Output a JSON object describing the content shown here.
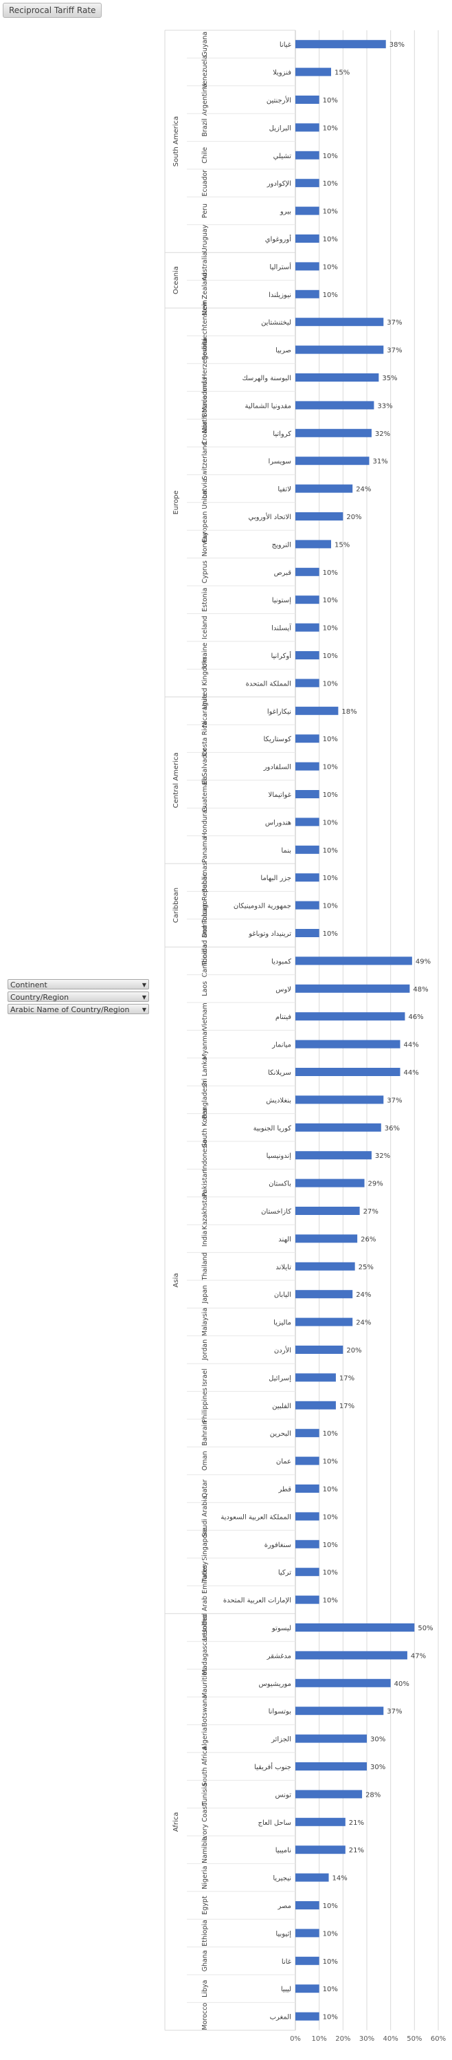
{
  "header": {
    "title": "Reciprocal Tariff Rate"
  },
  "fields": [
    {
      "label": "Continent",
      "icon": "dropdown-arrow-icon"
    },
    {
      "label": "Country/Region",
      "icon": "dropdown-arrow-icon"
    },
    {
      "label": "Arabic Name of Country/Region",
      "icon": "dropdown-arrow-icon"
    }
  ],
  "chart_data": {
    "type": "bar",
    "orientation": "horizontal",
    "bar_color": "#4472c4",
    "grid": true,
    "xlim": [
      0,
      60
    ],
    "x_ticks": [
      "0%",
      "10%",
      "20%",
      "30%",
      "40%",
      "50%",
      "60%"
    ],
    "value_suffix": "%",
    "groups": [
      {
        "continent": "South America",
        "rows": [
          {
            "country": "Guyana",
            "arabic": "غيانا",
            "value": 38
          },
          {
            "country": "Venezuela",
            "arabic": "فنزويلا",
            "value": 15
          },
          {
            "country": "Argentina",
            "arabic": "الأرجنتين",
            "value": 10
          },
          {
            "country": "Brazil",
            "arabic": "البرازيل",
            "value": 10
          },
          {
            "country": "Chile",
            "arabic": "تشيلي",
            "value": 10
          },
          {
            "country": "Ecuador",
            "arabic": "الإكوادور",
            "value": 10
          },
          {
            "country": "Peru",
            "arabic": "بيرو",
            "value": 10
          },
          {
            "country": "Uruguay",
            "arabic": "أوروغواي",
            "value": 10
          }
        ]
      },
      {
        "continent": "Oceania",
        "rows": [
          {
            "country": "Australia",
            "arabic": "أستراليا",
            "value": 10
          },
          {
            "country": "New Zealand",
            "arabic": "نيوزيلندا",
            "value": 10
          }
        ]
      },
      {
        "continent": "Europe",
        "rows": [
          {
            "country": "Liechtenstein",
            "arabic": "ليختنشتاين",
            "value": 37
          },
          {
            "country": "Serbia",
            "arabic": "صربيا",
            "value": 37
          },
          {
            "country": "Bosnia and Herzegovina",
            "arabic": "البوسنة والهرسك",
            "value": 35
          },
          {
            "country": "North Macedonia",
            "arabic": "مقدونيا الشمالية",
            "value": 33
          },
          {
            "country": "Croatia",
            "arabic": "كرواتيا",
            "value": 32
          },
          {
            "country": "Switzerland",
            "arabic": "سويسرا",
            "value": 31
          },
          {
            "country": "Latvia",
            "arabic": "لاتفيا",
            "value": 24
          },
          {
            "country": "European Union",
            "arabic": "الاتحاد الأوروبي",
            "value": 20
          },
          {
            "country": "Norway",
            "arabic": "النرويج",
            "value": 15
          },
          {
            "country": "Cyprus",
            "arabic": "قبرص",
            "value": 10
          },
          {
            "country": "Estonia",
            "arabic": "إستونيا",
            "value": 10
          },
          {
            "country": "Iceland",
            "arabic": "آيسلندا",
            "value": 10
          },
          {
            "country": "Ukraine",
            "arabic": "أوكرانيا",
            "value": 10
          },
          {
            "country": "United Kingdom",
            "arabic": "المملكة المتحدة",
            "value": 10
          }
        ]
      },
      {
        "continent": "Central America",
        "rows": [
          {
            "country": "Nicaragua",
            "arabic": "نيكاراغوا",
            "value": 18
          },
          {
            "country": "Costa Rica",
            "arabic": "كوستاريكا",
            "value": 10
          },
          {
            "country": "El Salvador",
            "arabic": "السلفادور",
            "value": 10
          },
          {
            "country": "Guatemala",
            "arabic": "غواتيمالا",
            "value": 10
          },
          {
            "country": "Honduras",
            "arabic": "هندوراس",
            "value": 10
          },
          {
            "country": "Panama",
            "arabic": "بنما",
            "value": 10
          }
        ]
      },
      {
        "continent": "Caribbean",
        "rows": [
          {
            "country": "Bahamas",
            "arabic": "جزر البهاما",
            "value": 10
          },
          {
            "country": "Dominican Republic",
            "arabic": "جمهورية الدومينيكان",
            "value": 10
          },
          {
            "country": "Trinidad and Tobago",
            "arabic": "ترينيداد وتوباغو",
            "value": 10
          }
        ]
      },
      {
        "continent": "Asia",
        "rows": [
          {
            "country": "Cambodia",
            "arabic": "كمبوديا",
            "value": 49
          },
          {
            "country": "Laos",
            "arabic": "لاوس",
            "value": 48
          },
          {
            "country": "Vietnam",
            "arabic": "فيتنام",
            "value": 46
          },
          {
            "country": "Myanmar",
            "arabic": "ميانمار",
            "value": 44
          },
          {
            "country": "Sri Lanka",
            "arabic": "سريلانكا",
            "value": 44
          },
          {
            "country": "Bangladesh",
            "arabic": "بنغلاديش",
            "value": 37
          },
          {
            "country": "South Korea",
            "arabic": "كوريا الجنوبية",
            "value": 36
          },
          {
            "country": "Indonesia",
            "arabic": "إندونيسيا",
            "value": 32
          },
          {
            "country": "Pakistan",
            "arabic": "باكستان",
            "value": 29
          },
          {
            "country": "Kazakhstan",
            "arabic": "كازاخستان",
            "value": 27
          },
          {
            "country": "India",
            "arabic": "الهند",
            "value": 26
          },
          {
            "country": "Thailand",
            "arabic": "تايلاند",
            "value": 25
          },
          {
            "country": "Japan",
            "arabic": "اليابان",
            "value": 24
          },
          {
            "country": "Malaysia",
            "arabic": "ماليزيا",
            "value": 24
          },
          {
            "country": "Jordan",
            "arabic": "الأردن",
            "value": 20
          },
          {
            "country": "Israel",
            "arabic": "إسرائيل",
            "value": 17
          },
          {
            "country": "Philippines",
            "arabic": "الفلبين",
            "value": 17
          },
          {
            "country": "Bahrain",
            "arabic": "البحرين",
            "value": 10
          },
          {
            "country": "Oman",
            "arabic": "عمان",
            "value": 10
          },
          {
            "country": "Qatar",
            "arabic": "قطر",
            "value": 10
          },
          {
            "country": "Saudi Arabia",
            "arabic": "المملكة العربية السعودية",
            "value": 10
          },
          {
            "country": "Singapore",
            "arabic": "سنغافورة",
            "value": 10
          },
          {
            "country": "Turkey",
            "arabic": "تركيا",
            "value": 10
          },
          {
            "country": "United Arab Emirates",
            "arabic": "الإمارات العربية المتحدة",
            "value": 10
          }
        ]
      },
      {
        "continent": "Africa",
        "rows": [
          {
            "country": "Lesotho",
            "arabic": "ليسوتو",
            "value": 50
          },
          {
            "country": "Madagascar",
            "arabic": "مدغشقر",
            "value": 47
          },
          {
            "country": "Mauritius",
            "arabic": "موريشيوس",
            "value": 40
          },
          {
            "country": "Botswana",
            "arabic": "بوتسوانا",
            "value": 37
          },
          {
            "country": "Algeria",
            "arabic": "الجزائر",
            "value": 30
          },
          {
            "country": "South Africa",
            "arabic": "جنوب أفريقيا",
            "value": 30
          },
          {
            "country": "Tunisia",
            "arabic": "تونس",
            "value": 28
          },
          {
            "country": "Ivory Coast",
            "arabic": "ساحل العاج",
            "value": 21
          },
          {
            "country": "Namibia",
            "arabic": "ناميبيا",
            "value": 21
          },
          {
            "country": "Nigeria",
            "arabic": "نيجيريا",
            "value": 14
          },
          {
            "country": "Egypt",
            "arabic": "مصر",
            "value": 10
          },
          {
            "country": "Ethiopia",
            "arabic": "إثيوبيا",
            "value": 10
          },
          {
            "country": "Ghana",
            "arabic": "غانا",
            "value": 10
          },
          {
            "country": "Libya",
            "arabic": "ليبيا",
            "value": 10
          },
          {
            "country": "Morocco",
            "arabic": "المغرب",
            "value": 10
          }
        ]
      }
    ]
  }
}
